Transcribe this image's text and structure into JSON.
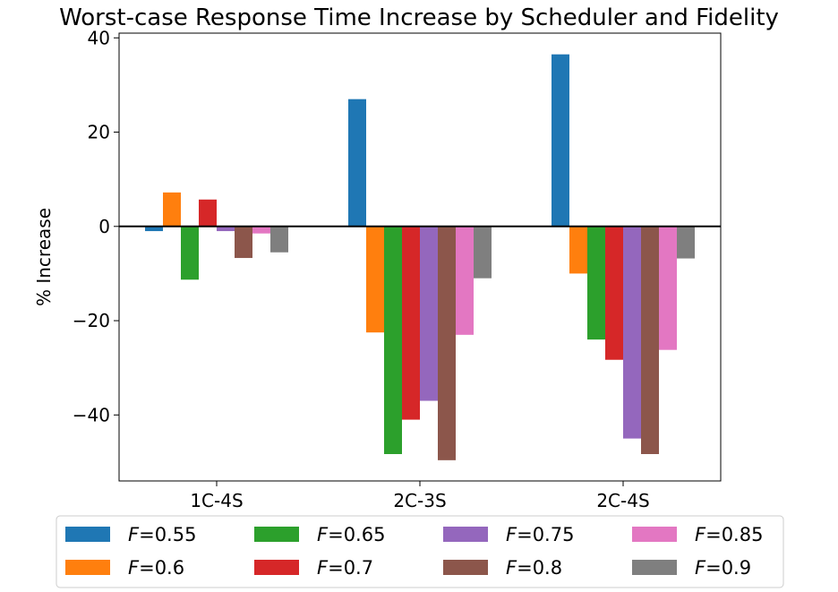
{
  "chart_data": {
    "type": "bar",
    "title": "Worst-case Response Time Increase by Scheduler and Fidelity",
    "xlabel": "",
    "ylabel": "% Increase",
    "categories": [
      "1C-4S",
      "2C-3S",
      "2C-4S"
    ],
    "ylim": [
      -54,
      41
    ],
    "yticks": [
      -40,
      -20,
      0,
      20,
      40
    ],
    "ytick_labels": [
      "−40",
      "−20",
      "0",
      "20",
      "40"
    ],
    "grid": false,
    "zero_line": true,
    "legend": {
      "placement": "bottom-center-outside",
      "columns": 4,
      "prefix": "F",
      "separator": "="
    },
    "series": [
      {
        "name": "0.55",
        "color": "#1f77b4",
        "values": [
          -1.0,
          27.0,
          36.5
        ]
      },
      {
        "name": "0.6",
        "color": "#ff7f0e",
        "values": [
          7.2,
          -22.5,
          -10.0
        ]
      },
      {
        "name": "0.65",
        "color": "#2ca02c",
        "values": [
          -11.3,
          -48.3,
          -24.0
        ]
      },
      {
        "name": "0.7",
        "color": "#d62728",
        "values": [
          5.7,
          -41.0,
          -28.3
        ]
      },
      {
        "name": "0.75",
        "color": "#9467bd",
        "values": [
          -1.0,
          -37.0,
          -45.0
        ]
      },
      {
        "name": "0.8",
        "color": "#8c564b",
        "values": [
          -6.7,
          -49.6,
          -48.3
        ]
      },
      {
        "name": "0.85",
        "color": "#e377c2",
        "values": [
          -1.5,
          -23.0,
          -26.2
        ]
      },
      {
        "name": "0.9",
        "color": "#7f7f7f",
        "values": [
          -5.5,
          -11.0,
          -6.8
        ]
      }
    ]
  }
}
